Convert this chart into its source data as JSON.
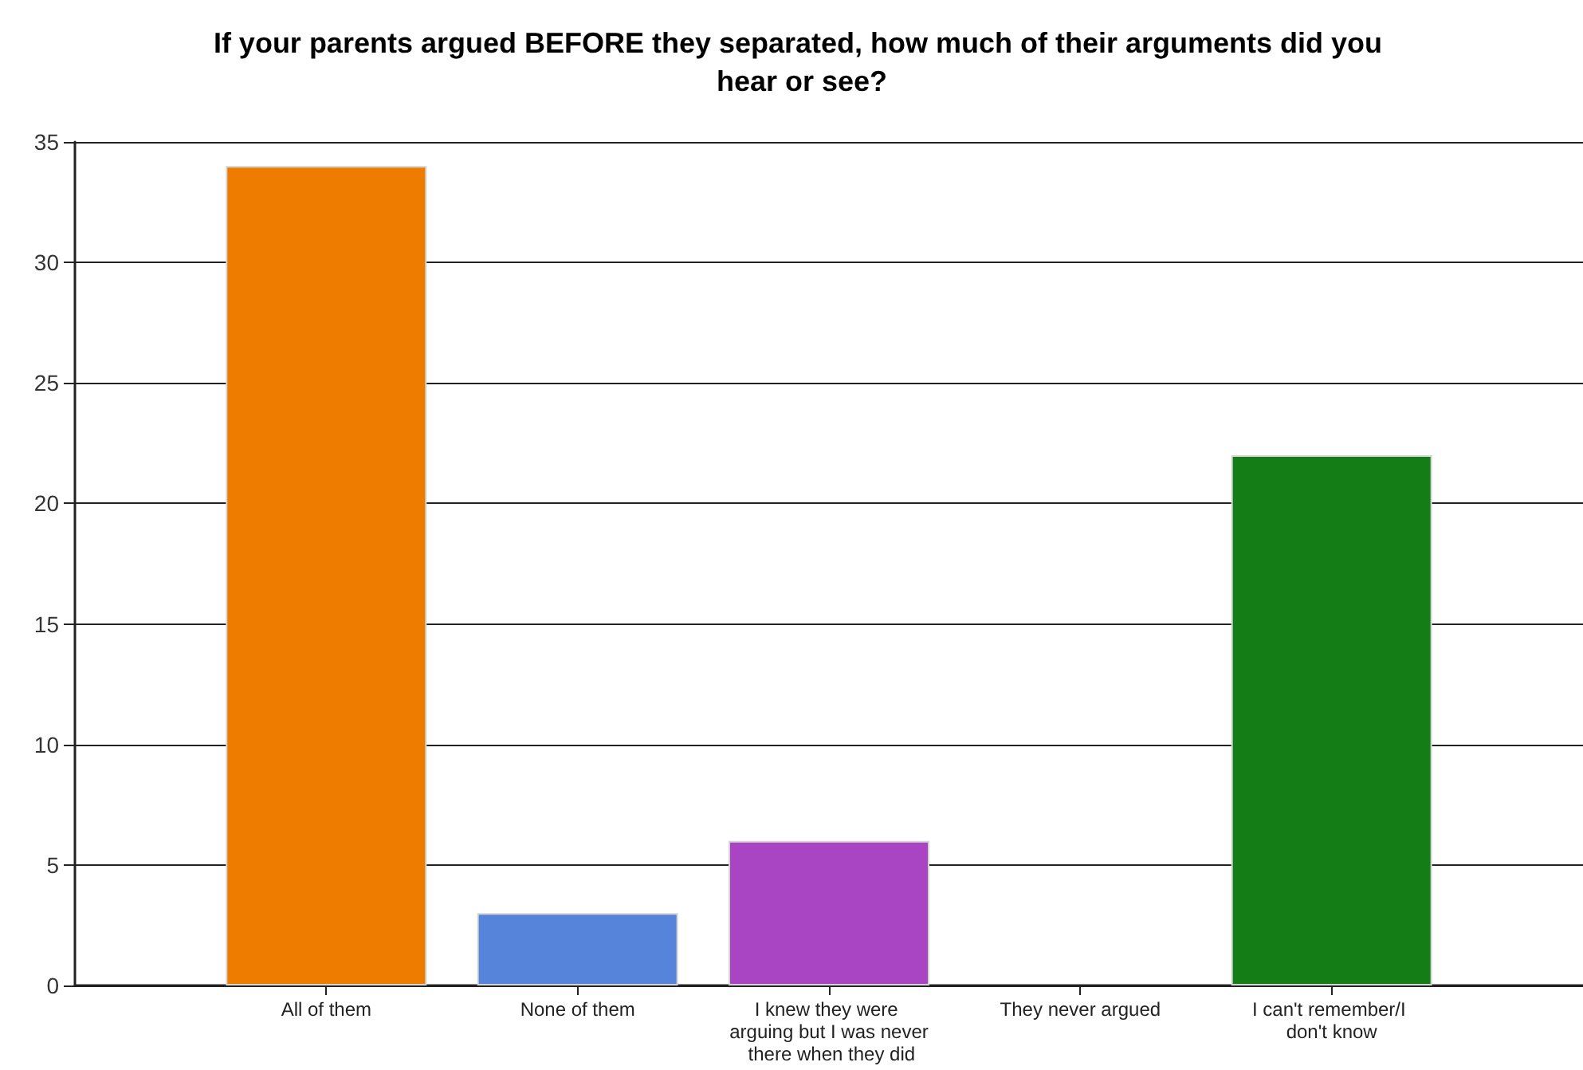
{
  "chart_data": {
    "type": "bar",
    "title": "If your parents argued BEFORE they separated, how much of their arguments did you hear or see?",
    "categories": [
      "All of them",
      "None of them",
      "I knew they were arguing but I was never there when they did",
      "They never argued",
      "I can't remember/I don't know"
    ],
    "values": [
      34,
      3,
      6,
      0,
      22
    ],
    "colors": [
      "#ee7c00",
      "#5584da",
      "#a945c2",
      null,
      "#157d15"
    ],
    "ylim": [
      0,
      35
    ],
    "yticks": [
      0,
      5,
      10,
      15,
      20,
      25,
      30,
      35
    ],
    "grid": "y"
  }
}
